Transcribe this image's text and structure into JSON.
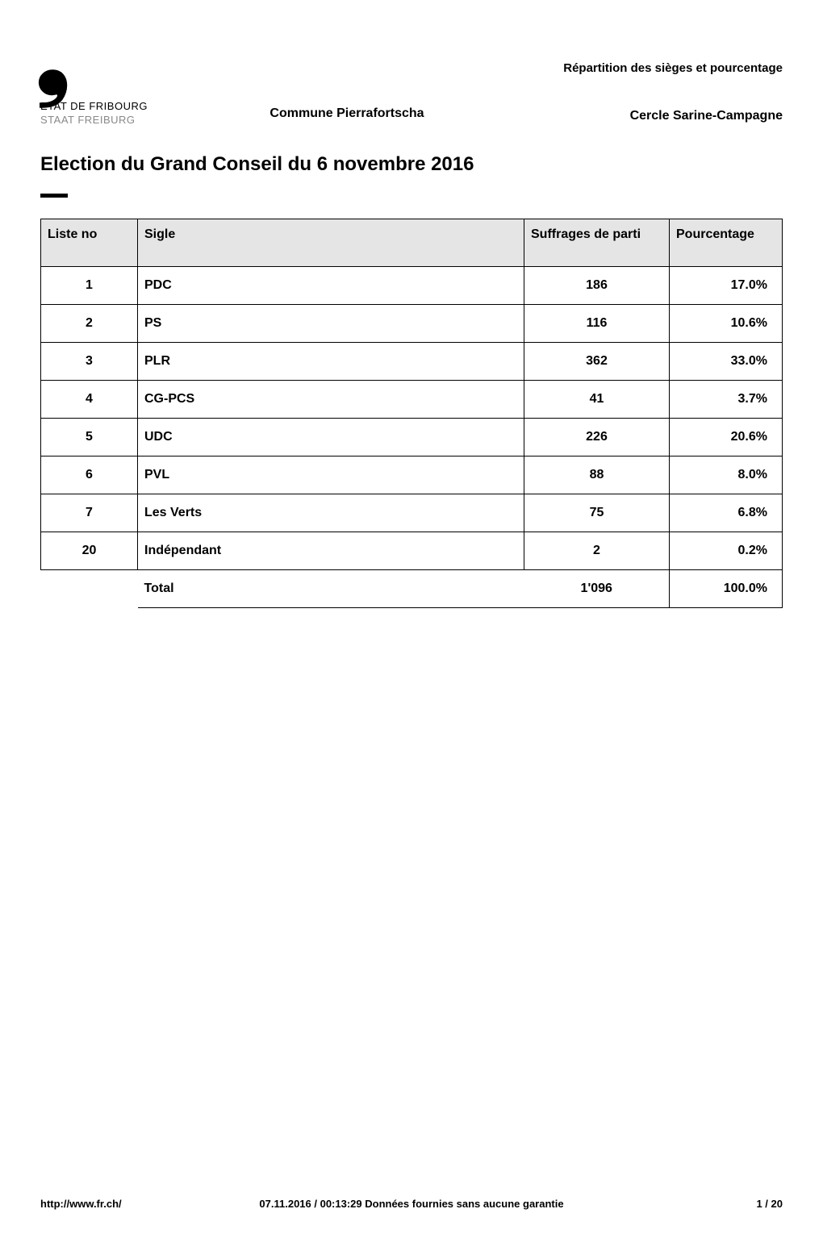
{
  "logo": {
    "mark": "'",
    "line1": "ETAT DE FRIBOURG",
    "line2": "STAAT FREIBURG"
  },
  "header": {
    "commune_label": "Commune Pierrafortscha",
    "repartition_label": "Répartition des sièges et pourcentage",
    "cercle_label": "Cercle Sarine-Campagne"
  },
  "title": "Election du Grand Conseil du 6 novembre 2016",
  "table": {
    "columns": {
      "liste_no": "Liste no",
      "sigle": "Sigle",
      "suffrages": "Suffrages de parti",
      "pourcentage": "Pourcentage"
    },
    "header_bg": "#e5e5e5",
    "border_color": "#000000",
    "rows": [
      {
        "no": "1",
        "sigle": "PDC",
        "suffrages": "186",
        "pct": "17.0%"
      },
      {
        "no": "2",
        "sigle": "PS",
        "suffrages": "116",
        "pct": "10.6%"
      },
      {
        "no": "3",
        "sigle": "PLR",
        "suffrages": "362",
        "pct": "33.0%"
      },
      {
        "no": "4",
        "sigle": "CG-PCS",
        "suffrages": "41",
        "pct": "3.7%"
      },
      {
        "no": "5",
        "sigle": "UDC",
        "suffrages": "226",
        "pct": "20.6%"
      },
      {
        "no": "6",
        "sigle": "PVL",
        "suffrages": "88",
        "pct": "8.0%"
      },
      {
        "no": "7",
        "sigle": "Les Verts",
        "suffrages": "75",
        "pct": "6.8%"
      },
      {
        "no": "20",
        "sigle": "Indépendant",
        "suffrages": "2",
        "pct": "0.2%"
      }
    ],
    "total": {
      "label": "Total",
      "suffrages": "1'096",
      "pct": "100.0%"
    }
  },
  "footer": {
    "url": "http://www.fr.ch/",
    "timestamp_line": "07.11.2016 / 00:13:29  Données fournies sans aucune garantie",
    "page_current": "1",
    "page_sep": "  /  ",
    "page_total": "20"
  }
}
